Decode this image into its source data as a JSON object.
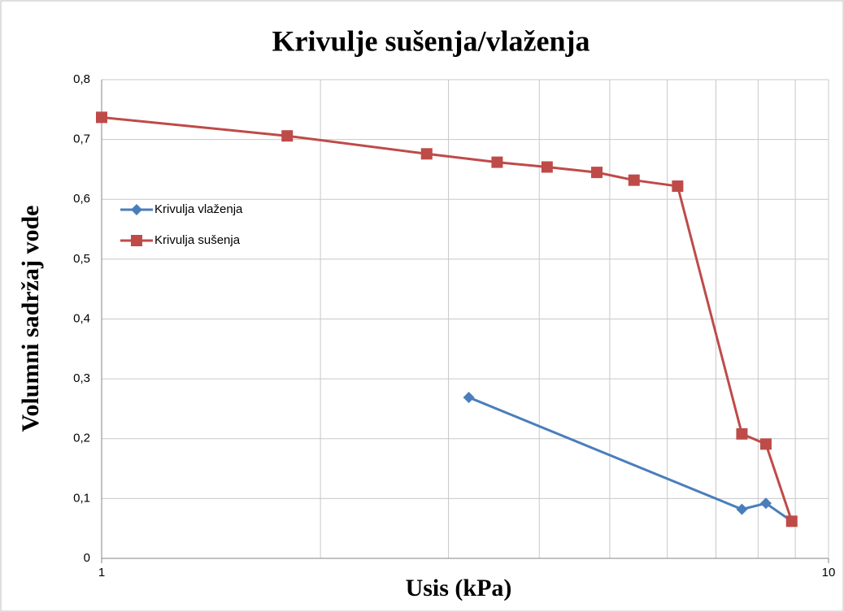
{
  "chart_data": {
    "type": "line",
    "title": "Krivulje sušenja/vlaženja",
    "x_label": "Usis (kPa)",
    "y_label": "Volumni sadržaj vode",
    "xlog": true,
    "xlim": [
      1,
      10
    ],
    "xticks": [
      1,
      10
    ],
    "xminor": [
      2,
      3,
      4,
      5,
      6,
      7,
      8,
      9
    ],
    "ylim": [
      0,
      0.8
    ],
    "yticks": [
      0,
      {
        "value": 0.1,
        "label": "0,1"
      },
      {
        "value": 0.2,
        "label": "0,2"
      },
      {
        "value": 0.3,
        "label": "0,3"
      },
      {
        "value": 0.4,
        "label": "0,4"
      },
      {
        "value": 0.5,
        "label": "0,5"
      },
      {
        "value": 0.6,
        "label": "0,6"
      },
      {
        "value": 0.7,
        "label": "0,7"
      },
      {
        "value": 0.8,
        "label": "0,8"
      }
    ],
    "grid": true,
    "legend": "left",
    "series": [
      {
        "name": "Krivulja vlaženja",
        "color": "#4a7ebb",
        "marker": "diamond",
        "x": [
          3.2,
          7.6,
          8.2,
          8.9
        ],
        "values": [
          0.269,
          0.082,
          0.092,
          0.062
        ]
      },
      {
        "name": "Krivulja sušenja",
        "color": "#be4b48",
        "marker": "square",
        "x": [
          1,
          1.8,
          2.8,
          3.5,
          4.1,
          4.8,
          5.4,
          6.2,
          7.6,
          8.2,
          8.9
        ],
        "values": [
          0.737,
          0.706,
          0.676,
          0.662,
          0.654,
          0.645,
          0.632,
          0.622,
          0.208,
          0.191,
          0.062
        ]
      }
    ]
  }
}
